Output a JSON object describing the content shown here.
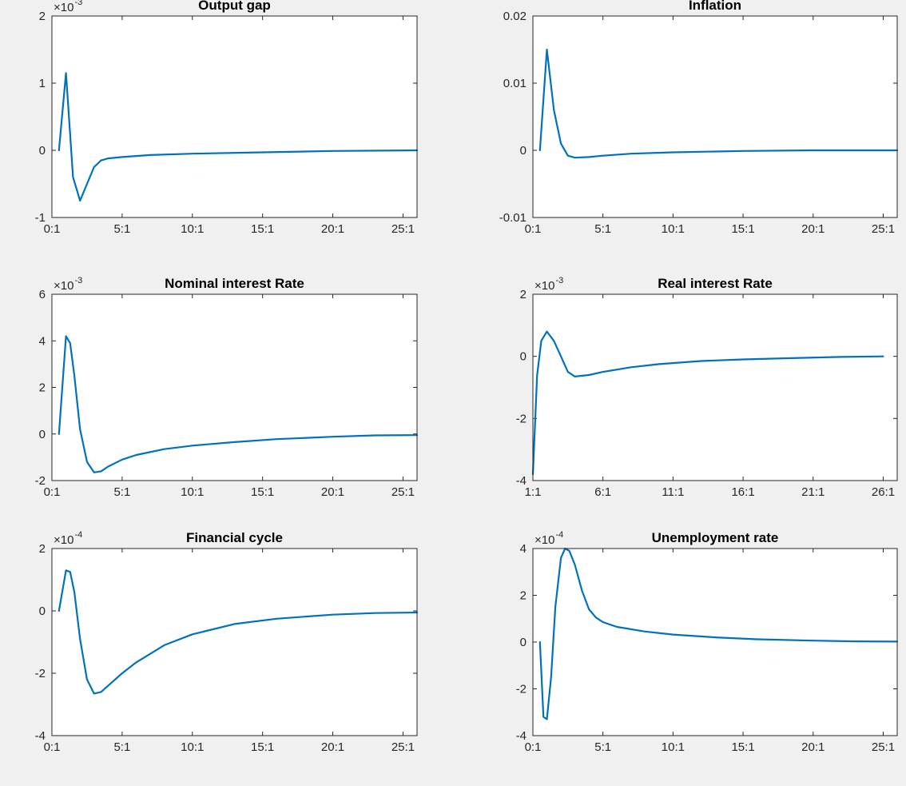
{
  "chart_data": [
    {
      "type": "line",
      "title": "Output gap",
      "exponent_base": "×10",
      "exponent": "-3",
      "ylim": [
        -1,
        2
      ],
      "yticks": [
        -1,
        0,
        1,
        2
      ],
      "ytick_labels": [
        "-1",
        "0",
        "1",
        "2"
      ],
      "xlim": [
        0,
        26
      ],
      "xticks": [
        0,
        5,
        10,
        15,
        20,
        25
      ],
      "xtick_labels": [
        "0:1",
        "5:1",
        "10:1",
        "15:1",
        "20:1",
        "25:1"
      ],
      "color": "#0072bd",
      "x": [
        0.5,
        1,
        1.5,
        2,
        2.5,
        3,
        3.5,
        4,
        5,
        7,
        10,
        15,
        20,
        26
      ],
      "y": [
        0,
        1.15,
        -0.4,
        -0.75,
        -0.5,
        -0.25,
        -0.15,
        -0.12,
        -0.1,
        -0.07,
        -0.05,
        -0.03,
        -0.01,
        0
      ]
    },
    {
      "type": "line",
      "title": "Inflation",
      "exponent_base": "",
      "exponent": "",
      "ylim": [
        -0.01,
        0.02
      ],
      "yticks": [
        -0.01,
        0,
        0.01,
        0.02
      ],
      "ytick_labels": [
        "-0.01",
        "0",
        "0.01",
        "0.02"
      ],
      "xlim": [
        0,
        26
      ],
      "xticks": [
        0,
        5,
        10,
        15,
        20,
        25
      ],
      "xtick_labels": [
        "0:1",
        "5:1",
        "10:1",
        "15:1",
        "20:1",
        "25:1"
      ],
      "color": "#0072bd",
      "x": [
        0.5,
        1,
        1.5,
        2,
        2.5,
        3,
        4,
        5,
        7,
        10,
        15,
        20,
        26
      ],
      "y": [
        0,
        0.015,
        0.006,
        0.001,
        -0.0008,
        -0.0011,
        -0.001,
        -0.0008,
        -0.0005,
        -0.0003,
        -0.0001,
        0,
        0
      ]
    },
    {
      "type": "line",
      "title": "Nominal interest Rate",
      "exponent_base": "×10",
      "exponent": "-3",
      "ylim": [
        -2,
        6
      ],
      "yticks": [
        -2,
        0,
        2,
        4,
        6
      ],
      "ytick_labels": [
        "-2",
        "0",
        "2",
        "4",
        "6"
      ],
      "xlim": [
        0,
        26
      ],
      "xticks": [
        0,
        5,
        10,
        15,
        20,
        25
      ],
      "xtick_labels": [
        "0:1",
        "5:1",
        "10:1",
        "15:1",
        "20:1",
        "25:1"
      ],
      "color": "#0072bd",
      "x": [
        0.5,
        1,
        1.3,
        1.6,
        2,
        2.5,
        3,
        3.5,
        4,
        5,
        6,
        8,
        10,
        13,
        16,
        20,
        23,
        26
      ],
      "y": [
        0,
        4.2,
        3.9,
        2.5,
        0.2,
        -1.2,
        -1.65,
        -1.6,
        -1.4,
        -1.1,
        -0.9,
        -0.65,
        -0.5,
        -0.35,
        -0.22,
        -0.12,
        -0.06,
        -0.05
      ]
    },
    {
      "type": "line",
      "title": "Real interest Rate",
      "exponent_base": "×10",
      "exponent": "-3",
      "ylim": [
        -4,
        2
      ],
      "yticks": [
        -4,
        -2,
        0,
        2
      ],
      "ytick_labels": [
        "-4",
        "-2",
        "0",
        "2"
      ],
      "xlim": [
        1,
        27
      ],
      "xticks": [
        1,
        6,
        11,
        16,
        21,
        26
      ],
      "xtick_labels": [
        "1:1",
        "6:1",
        "11:1",
        "16:1",
        "21:1",
        "26:1"
      ],
      "color": "#0072bd",
      "x": [
        1,
        1.3,
        1.6,
        2,
        2.5,
        3,
        3.5,
        4,
        5,
        6,
        8,
        10,
        13,
        16,
        20,
        23,
        26
      ],
      "y": [
        -3.8,
        -0.6,
        0.5,
        0.8,
        0.5,
        0.0,
        -0.5,
        -0.65,
        -0.6,
        -0.5,
        -0.35,
        -0.25,
        -0.15,
        -0.1,
        -0.05,
        -0.02,
        0
      ]
    },
    {
      "type": "line",
      "title": "Financial cycle",
      "exponent_base": "×10",
      "exponent": "-4",
      "ylim": [
        -4,
        2
      ],
      "yticks": [
        -4,
        -2,
        0,
        2
      ],
      "ytick_labels": [
        "-4",
        "-2",
        "0",
        "2"
      ],
      "xlim": [
        0,
        26
      ],
      "xticks": [
        0,
        5,
        10,
        15,
        20,
        25
      ],
      "xtick_labels": [
        "0:1",
        "5:1",
        "10:1",
        "15:1",
        "20:1",
        "25:1"
      ],
      "color": "#0072bd",
      "x": [
        0.5,
        1,
        1.3,
        1.6,
        2,
        2.5,
        3,
        3.5,
        4,
        5,
        6,
        8,
        10,
        13,
        16,
        20,
        23,
        26
      ],
      "y": [
        0,
        1.3,
        1.25,
        0.6,
        -0.9,
        -2.2,
        -2.65,
        -2.6,
        -2.4,
        -2.0,
        -1.65,
        -1.1,
        -0.75,
        -0.42,
        -0.25,
        -0.12,
        -0.07,
        -0.05
      ]
    },
    {
      "type": "line",
      "title": "Unemployment rate",
      "exponent_base": "×10",
      "exponent": "-4",
      "ylim": [
        -4,
        4
      ],
      "yticks": [
        -4,
        -2,
        0,
        2,
        4
      ],
      "ytick_labels": [
        "-4",
        "-2",
        "0",
        "2",
        "4"
      ],
      "xlim": [
        0,
        26
      ],
      "xticks": [
        0,
        5,
        10,
        15,
        20,
        25
      ],
      "xtick_labels": [
        "0:1",
        "5:1",
        "10:1",
        "15:1",
        "20:1",
        "25:1"
      ],
      "color": "#0072bd",
      "x": [
        0.5,
        0.75,
        1,
        1.3,
        1.6,
        2,
        2.3,
        2.6,
        3,
        3.5,
        4,
        4.5,
        5,
        6,
        8,
        10,
        13,
        16,
        20,
        23,
        26
      ],
      "y": [
        0,
        -3.2,
        -3.3,
        -1.5,
        1.5,
        3.6,
        4.0,
        3.9,
        3.3,
        2.2,
        1.4,
        1.05,
        0.85,
        0.65,
        0.45,
        0.32,
        0.2,
        0.12,
        0.06,
        0.03,
        0.02
      ]
    }
  ]
}
